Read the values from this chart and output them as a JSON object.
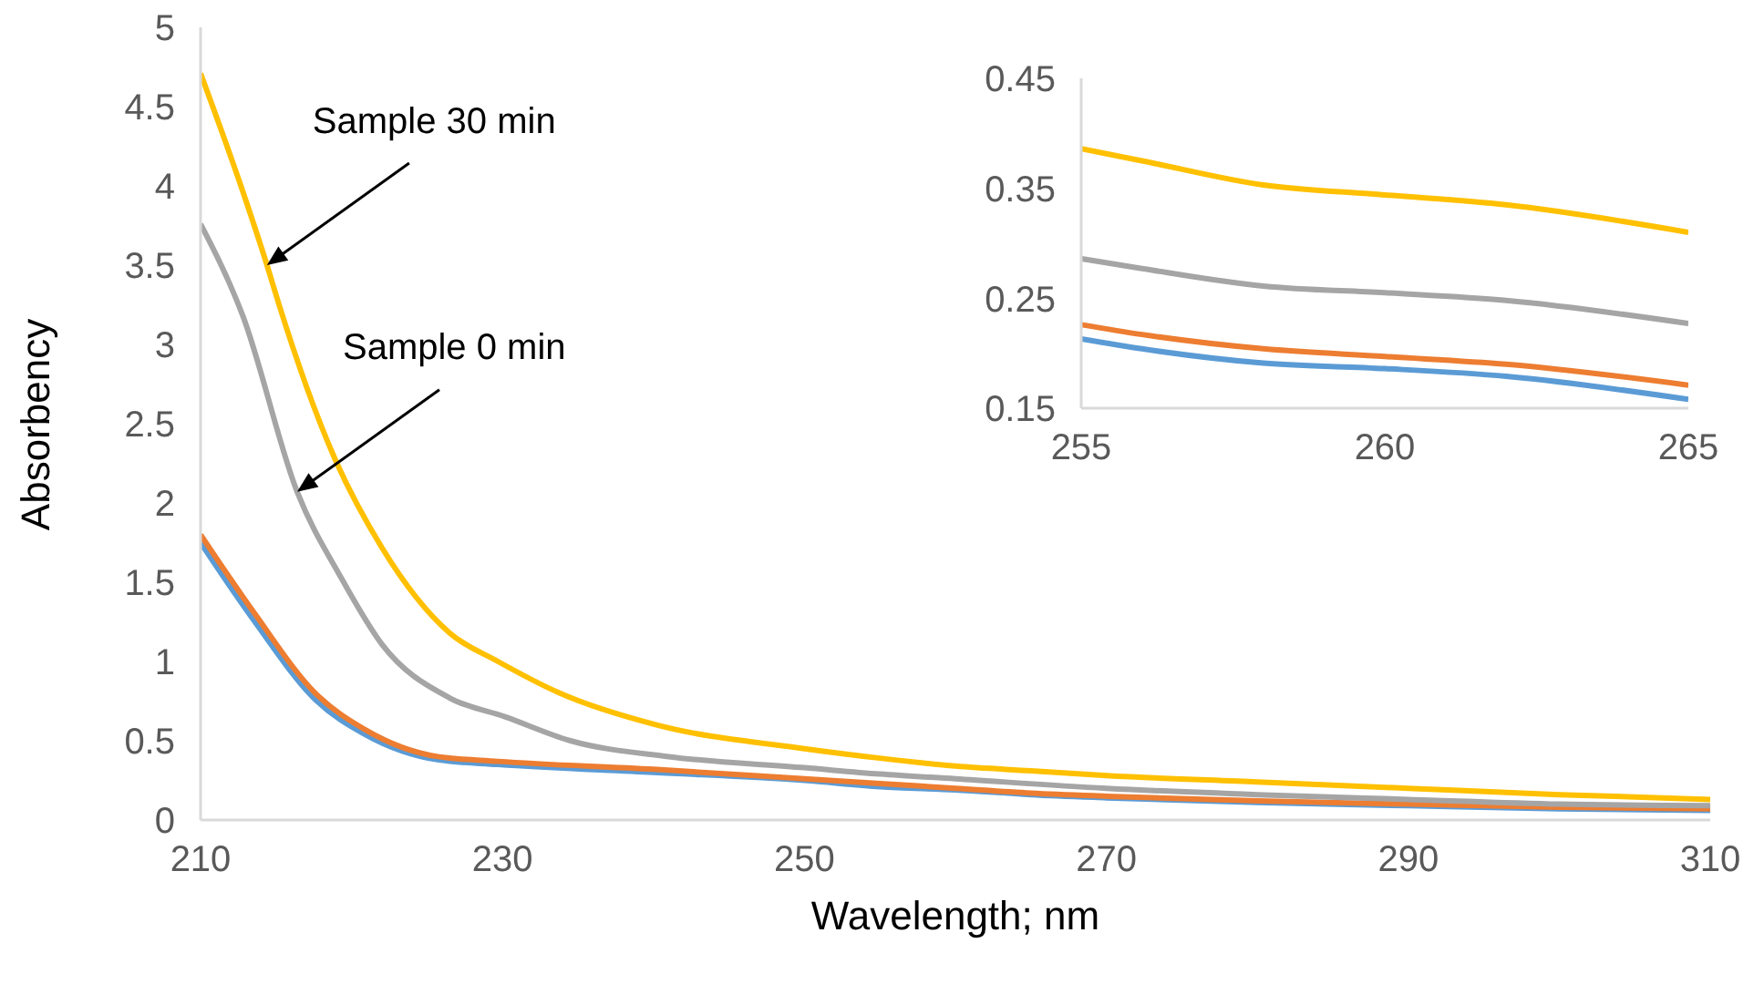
{
  "chart_data": [
    {
      "type": "line",
      "xlabel": "Wavelength; nm",
      "ylabel": "Absorbency",
      "xlim": [
        210,
        310
      ],
      "xticks": [
        210,
        230,
        250,
        270,
        290,
        310
      ],
      "ylim": [
        0,
        5
      ],
      "yticks": [
        0,
        0.5,
        1,
        1.5,
        2,
        2.5,
        3,
        3.5,
        4,
        4.5,
        5
      ],
      "grid": false,
      "legend": false,
      "series": [
        {
          "color": "#5b9bd5",
          "x": [
            210,
            213.6,
            217.6,
            220.9,
            225.7,
            229.7,
            240,
            250,
            255,
            260,
            265,
            270,
            280,
            290,
            300,
            310
          ],
          "values": [
            1.75,
            1.25,
            0.76,
            0.54,
            0.38,
            0.35,
            0.3,
            0.25,
            0.21,
            0.19,
            0.16,
            0.14,
            0.11,
            0.09,
            0.07,
            0.06
          ]
        },
        {
          "color": "#ed7d31",
          "x": [
            210,
            213.6,
            217.6,
            220.9,
            225.7,
            229.7,
            240,
            250,
            255,
            260,
            265,
            270,
            280,
            290,
            300,
            310
          ],
          "values": [
            1.8,
            1.3,
            0.8,
            0.57,
            0.4,
            0.37,
            0.32,
            0.26,
            0.23,
            0.2,
            0.17,
            0.15,
            0.12,
            0.1,
            0.08,
            0.07
          ]
        },
        {
          "color": "#a5a5a5",
          "x": [
            210,
            212.8,
            216.4,
            219.3,
            222,
            226.5,
            230.2,
            234.5,
            241,
            250,
            255,
            260,
            270,
            280,
            290,
            300,
            310
          ],
          "values": [
            3.76,
            3.18,
            2.07,
            1.53,
            1.11,
            0.77,
            0.65,
            0.5,
            0.4,
            0.33,
            0.29,
            0.26,
            0.2,
            0.16,
            0.13,
            0.1,
            0.09
          ]
        },
        {
          "color": "#ffc000",
          "x": [
            210,
            212.6,
            214.4,
            215.2,
            218.8,
            222,
            226.5,
            229.7,
            233.8,
            240.2,
            250,
            255,
            260,
            265,
            270,
            280,
            290,
            300,
            310
          ],
          "values": [
            4.71,
            4.02,
            3.5,
            3.25,
            2.3,
            1.72,
            1.18,
            1.0,
            0.8,
            0.6,
            0.45,
            0.39,
            0.34,
            0.31,
            0.28,
            0.24,
            0.2,
            0.16,
            0.13
          ]
        }
      ],
      "annotations": [
        {
          "text": "Sample 30 min",
          "x": 214.4,
          "y": 3.5
        },
        {
          "text": "Sample 0 min",
          "x": 216.4,
          "y": 2.07
        }
      ]
    },
    {
      "type": "line",
      "xlim": [
        255,
        265
      ],
      "xticks": [
        255,
        260,
        265
      ],
      "ylim": [
        0.15,
        0.45
      ],
      "yticks": [
        0.15,
        0.25,
        0.35,
        0.45
      ],
      "grid": false,
      "legend": false,
      "x": [
        255,
        256,
        258,
        260,
        262,
        265
      ],
      "series": [
        {
          "color": "#5b9bd5",
          "values": [
            0.213,
            0.204,
            0.191,
            0.186,
            0.179,
            0.158
          ]
        },
        {
          "color": "#ed7d31",
          "values": [
            0.226,
            0.217,
            0.204,
            0.197,
            0.19,
            0.171
          ]
        },
        {
          "color": "#a5a5a5",
          "values": [
            0.286,
            0.277,
            0.261,
            0.255,
            0.248,
            0.227
          ]
        },
        {
          "color": "#ffc000",
          "values": [
            0.386,
            0.375,
            0.353,
            0.344,
            0.335,
            0.31
          ]
        }
      ]
    }
  ]
}
